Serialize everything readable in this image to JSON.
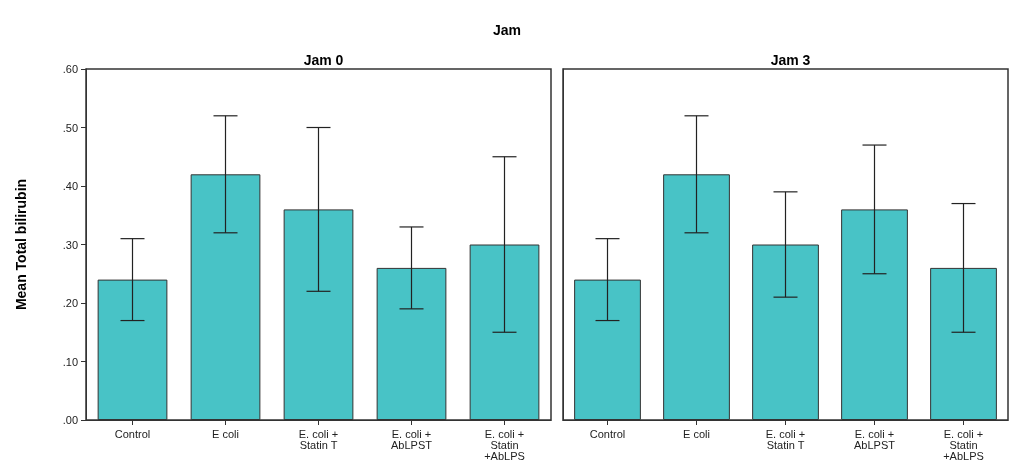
{
  "chart_data": [
    {
      "type": "bar",
      "title": "Jam 0",
      "annotations": [
        "Jam"
      ],
      "ylabel": "Mean Total bilirubin",
      "categories": [
        "Control",
        "E coli",
        "E. coli +\nStatin T",
        "E. coli +\nAbLPST",
        "E. coli +\nStatin\n+AbLPS"
      ],
      "values": [
        0.24,
        0.42,
        0.36,
        0.26,
        0.3
      ],
      "errors": [
        [
          0.17,
          0.31
        ],
        [
          0.32,
          0.52
        ],
        [
          0.22,
          0.5
        ],
        [
          0.19,
          0.33
        ],
        [
          0.15,
          0.45
        ]
      ],
      "color": "#48c3c6",
      "ylim": [
        0,
        0.6
      ],
      "yticks": [
        {
          "value": 0,
          "label": ".00"
        },
        {
          "value": 0.1,
          "label": ".10"
        },
        {
          "value": 0.2,
          "label": ".20"
        },
        {
          "value": 0.3,
          "label": ".30"
        },
        {
          "value": 0.4,
          "label": ".40"
        },
        {
          "value": 0.5,
          "label": ".50"
        },
        {
          "value": 0.6,
          "label": ".60"
        }
      ],
      "grid": false
    },
    {
      "type": "bar",
      "title": "Jam 3",
      "categories": [
        "Control",
        "E coli",
        "E. coli +\nStatin T",
        "E. coli +\nAbLPST",
        "E. coli +\nStatin\n+AbLPS"
      ],
      "values": [
        0.24,
        0.42,
        0.3,
        0.36,
        0.26
      ],
      "errors": [
        [
          0.17,
          0.31
        ],
        [
          0.32,
          0.52
        ],
        [
          0.21,
          0.39
        ],
        [
          0.25,
          0.47
        ],
        [
          0.15,
          0.37
        ]
      ],
      "color": "#48c3c6",
      "ylim": [
        0,
        0.6
      ],
      "grid": false,
      "tick_labels": "x"
    }
  ]
}
